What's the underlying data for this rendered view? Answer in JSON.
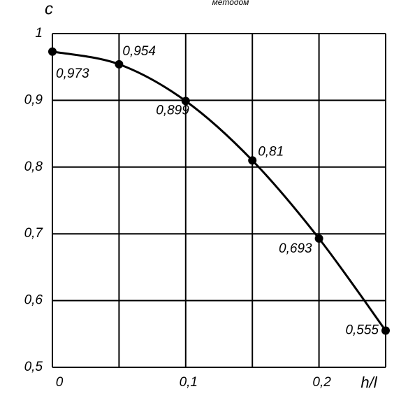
{
  "chart_data": {
    "type": "line",
    "title": "методом",
    "ylabel": "c",
    "xlabel": "h/l",
    "x": [
      0,
      0.05,
      0.1,
      0.15,
      0.2,
      0.25
    ],
    "series": [
      {
        "color": "#000000",
        "values": [
          0.973,
          0.954,
          0.899,
          0.81,
          0.693,
          0.555
        ],
        "value_labels": [
          "0,973",
          "0,954",
          "0,899",
          "0,81",
          "0,693",
          "0,555"
        ]
      }
    ],
    "xlim": [
      0,
      0.25
    ],
    "xticks": [
      0,
      {
        "value": 0.05,
        "label": null
      },
      {
        "value": 0.1,
        "label": "0,1"
      },
      {
        "value": 0.15,
        "label": null
      },
      {
        "value": 0.2,
        "label": "0,2"
      },
      {
        "value": 0.25,
        "label": null
      }
    ],
    "ylim": [
      0.5,
      1
    ],
    "yticks": [
      {
        "value": 0.5,
        "label": "0,5"
      },
      {
        "value": 0.6,
        "label": "0,6"
      },
      {
        "value": 0.7,
        "label": "0,7"
      },
      {
        "value": 0.8,
        "label": "0,8"
      },
      {
        "value": 0.9,
        "label": "0,9"
      },
      1
    ],
    "grid": true
  }
}
